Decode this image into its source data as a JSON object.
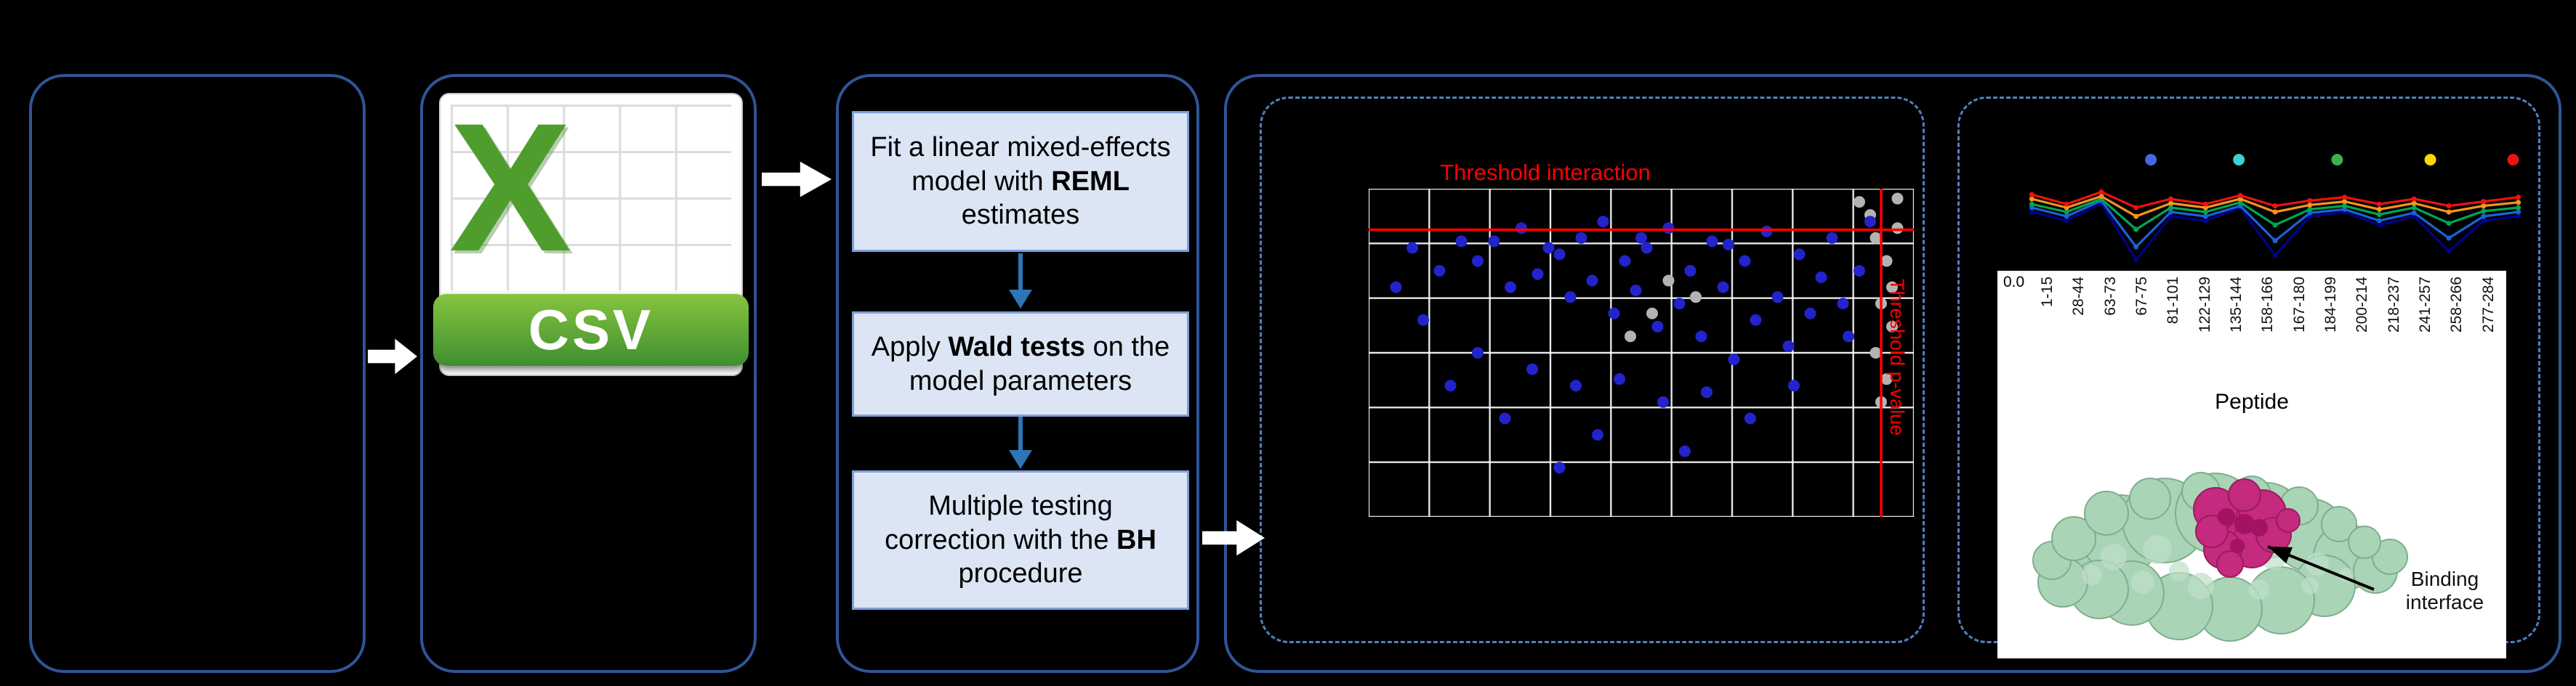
{
  "style": {
    "panel_border": "#2f5597",
    "dashed_border": "#4f81bd",
    "box_fill": "#dbe5f3",
    "box_border": "#7f9fd8",
    "arrow_blue": "#2e75b6",
    "arrow_white": "#ffffff",
    "csv_green": "#4f9e2d",
    "banner_green_1": "#86c440",
    "banner_green_2": "#3f8f2f"
  },
  "csv": {
    "x_label": "X",
    "banner_label": "CSV"
  },
  "steps": [
    {
      "pre": "Fit a linear mixed-effects model with ",
      "bold": "REML",
      "post": " estimates"
    },
    {
      "pre": "Apply ",
      "bold": "Wald tests",
      "post": " on the model parameters"
    },
    {
      "pre": "Multiple testing correction with the ",
      "bold": "BH",
      "post": " procedure"
    }
  ],
  "volcano": {
    "chart_data": {
      "type": "scatter",
      "title": "",
      "threshold_interaction_label": "Threshold interaction",
      "threshold_side_label": "Threshold p-value",
      "threshold_color": "#ff0000",
      "point_color": "#2323cc",
      "gray_color": "#b3b3b3",
      "grid": {
        "cols": 10,
        "rows": 7,
        "on": true
      },
      "threshold_y": 0.125,
      "threshold_x": 0.94,
      "blue_points": [
        [
          0.08,
          0.18
        ],
        [
          0.13,
          0.25
        ],
        [
          0.17,
          0.16
        ],
        [
          0.2,
          0.22
        ],
        [
          0.23,
          0.16
        ],
        [
          0.26,
          0.3
        ],
        [
          0.28,
          0.12
        ],
        [
          0.31,
          0.26
        ],
        [
          0.33,
          0.18
        ],
        [
          0.35,
          0.2
        ],
        [
          0.37,
          0.33
        ],
        [
          0.39,
          0.15
        ],
        [
          0.41,
          0.28
        ],
        [
          0.43,
          0.1
        ],
        [
          0.45,
          0.38
        ],
        [
          0.47,
          0.22
        ],
        [
          0.49,
          0.31
        ],
        [
          0.51,
          0.18
        ],
        [
          0.53,
          0.42
        ],
        [
          0.55,
          0.12
        ],
        [
          0.57,
          0.35
        ],
        [
          0.59,
          0.25
        ],
        [
          0.61,
          0.45
        ],
        [
          0.63,
          0.16
        ],
        [
          0.65,
          0.3
        ],
        [
          0.67,
          0.52
        ],
        [
          0.69,
          0.22
        ],
        [
          0.71,
          0.4
        ],
        [
          0.73,
          0.13
        ],
        [
          0.75,
          0.33
        ],
        [
          0.77,
          0.48
        ],
        [
          0.79,
          0.2
        ],
        [
          0.81,
          0.38
        ],
        [
          0.83,
          0.27
        ],
        [
          0.85,
          0.15
        ],
        [
          0.87,
          0.35
        ],
        [
          0.3,
          0.55
        ],
        [
          0.38,
          0.6
        ],
        [
          0.46,
          0.58
        ],
        [
          0.54,
          0.65
        ],
        [
          0.62,
          0.62
        ],
        [
          0.25,
          0.7
        ],
        [
          0.42,
          0.75
        ],
        [
          0.58,
          0.8
        ],
        [
          0.35,
          0.85
        ],
        [
          0.2,
          0.5
        ],
        [
          0.15,
          0.6
        ],
        [
          0.7,
          0.7
        ],
        [
          0.78,
          0.6
        ],
        [
          0.88,
          0.45
        ],
        [
          0.9,
          0.25
        ],
        [
          0.92,
          0.1
        ],
        [
          0.1,
          0.4
        ],
        [
          0.05,
          0.3
        ],
        [
          0.5,
          0.15
        ],
        [
          0.66,
          0.17
        ]
      ],
      "gray_points": [
        [
          0.93,
          0.15
        ],
        [
          0.95,
          0.22
        ],
        [
          0.94,
          0.35
        ],
        [
          0.96,
          0.42
        ],
        [
          0.93,
          0.5
        ],
        [
          0.95,
          0.58
        ],
        [
          0.94,
          0.65
        ],
        [
          0.96,
          0.3
        ],
        [
          0.97,
          0.12
        ],
        [
          0.92,
          0.08
        ],
        [
          0.9,
          0.04
        ],
        [
          0.97,
          0.03
        ],
        [
          0.55,
          0.28
        ],
        [
          0.6,
          0.33
        ],
        [
          0.48,
          0.45
        ],
        [
          0.52,
          0.38
        ]
      ]
    }
  },
  "peptide": {
    "y_tick": "0.0",
    "x_axis_title": "Peptide",
    "annotation": "Binding interface",
    "x_labels": [
      "1-15",
      "28-44",
      "63-73",
      "67-75",
      "81-101",
      "122-129",
      "135-144",
      "158-166",
      "167-180",
      "184-199",
      "200-214",
      "218-237",
      "241-257",
      "258-266",
      "277-284"
    ],
    "chart_data": {
      "type": "line",
      "legend_dots": [
        "#4169e1",
        "#40d0d0",
        "#3cb34a",
        "#ffd700",
        "#ee1111"
      ],
      "legend_x": [
        0.26,
        0.43,
        0.62,
        0.8,
        0.96
      ],
      "series": [
        {
          "name": "navy",
          "color": "#00008b",
          "values": [
            0.45,
            0.55,
            0.35,
            1.0,
            0.5,
            0.55,
            0.4,
            0.95,
            0.5,
            0.45,
            0.6,
            0.5,
            0.9,
            0.55,
            0.5
          ]
        },
        {
          "name": "blue",
          "color": "#1565d8",
          "values": [
            0.4,
            0.5,
            0.32,
            0.85,
            0.45,
            0.5,
            0.38,
            0.78,
            0.46,
            0.42,
            0.55,
            0.46,
            0.75,
            0.5,
            0.45
          ]
        },
        {
          "name": "green",
          "color": "#00a651",
          "values": [
            0.36,
            0.45,
            0.3,
            0.65,
            0.4,
            0.45,
            0.34,
            0.6,
            0.42,
            0.38,
            0.48,
            0.4,
            0.58,
            0.44,
            0.4
          ]
        },
        {
          "name": "orange",
          "color": "#f7941d",
          "values": [
            0.3,
            0.4,
            0.27,
            0.5,
            0.35,
            0.4,
            0.3,
            0.45,
            0.37,
            0.33,
            0.42,
            0.35,
            0.45,
            0.38,
            0.34
          ]
        },
        {
          "name": "red",
          "color": "#ee1111",
          "values": [
            0.25,
            0.36,
            0.22,
            0.4,
            0.3,
            0.36,
            0.26,
            0.38,
            0.32,
            0.28,
            0.36,
            0.3,
            0.38,
            0.33,
            0.28
          ]
        }
      ]
    },
    "protein_colors": {
      "surface": "#a9d4b6",
      "surface_edge": "#7fae8f",
      "interface": "#c42a7d",
      "interface_edge": "#9c1a60"
    }
  }
}
